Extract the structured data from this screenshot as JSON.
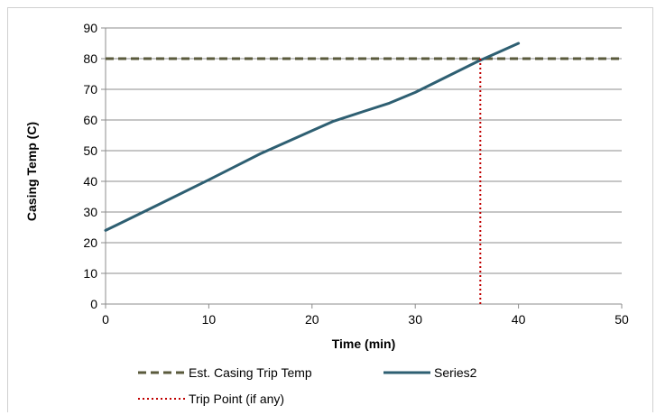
{
  "chart_data": {
    "type": "line",
    "xlabel": "Time (min)",
    "ylabel": "Casing Temp (C)",
    "xlim": [
      0,
      50
    ],
    "ylim": [
      0,
      90
    ],
    "x_ticks": [
      "0",
      "10",
      "20",
      "30",
      "40",
      "50"
    ],
    "y_ticks": [
      "0",
      "10",
      "20",
      "30",
      "40",
      "50",
      "60",
      "70",
      "80",
      "90"
    ],
    "grid": "horizontal",
    "legend_position": "bottom",
    "series": [
      {
        "name": "Est. Casing Trip Temp",
        "style": "dashed",
        "color": "#5a5a3c",
        "points": [
          [
            0,
            80
          ],
          [
            50,
            80
          ]
        ]
      },
      {
        "name": "Series2",
        "style": "solid",
        "color": "#2e5f72",
        "points": [
          [
            0,
            24
          ],
          [
            5,
            32.2
          ],
          [
            10,
            40.5
          ],
          [
            15,
            49
          ],
          [
            20,
            56.5
          ],
          [
            22,
            59.5
          ],
          [
            25,
            62.8
          ],
          [
            27.5,
            65.5
          ],
          [
            30,
            69
          ],
          [
            33,
            74
          ],
          [
            36,
            79
          ],
          [
            38,
            82
          ],
          [
            40,
            85
          ]
        ]
      },
      {
        "name": "Trip Point (if any)",
        "style": "dotted",
        "color": "#c00000",
        "points": [
          [
            36.3,
            0
          ],
          [
            36.3,
            80
          ]
        ]
      }
    ]
  }
}
